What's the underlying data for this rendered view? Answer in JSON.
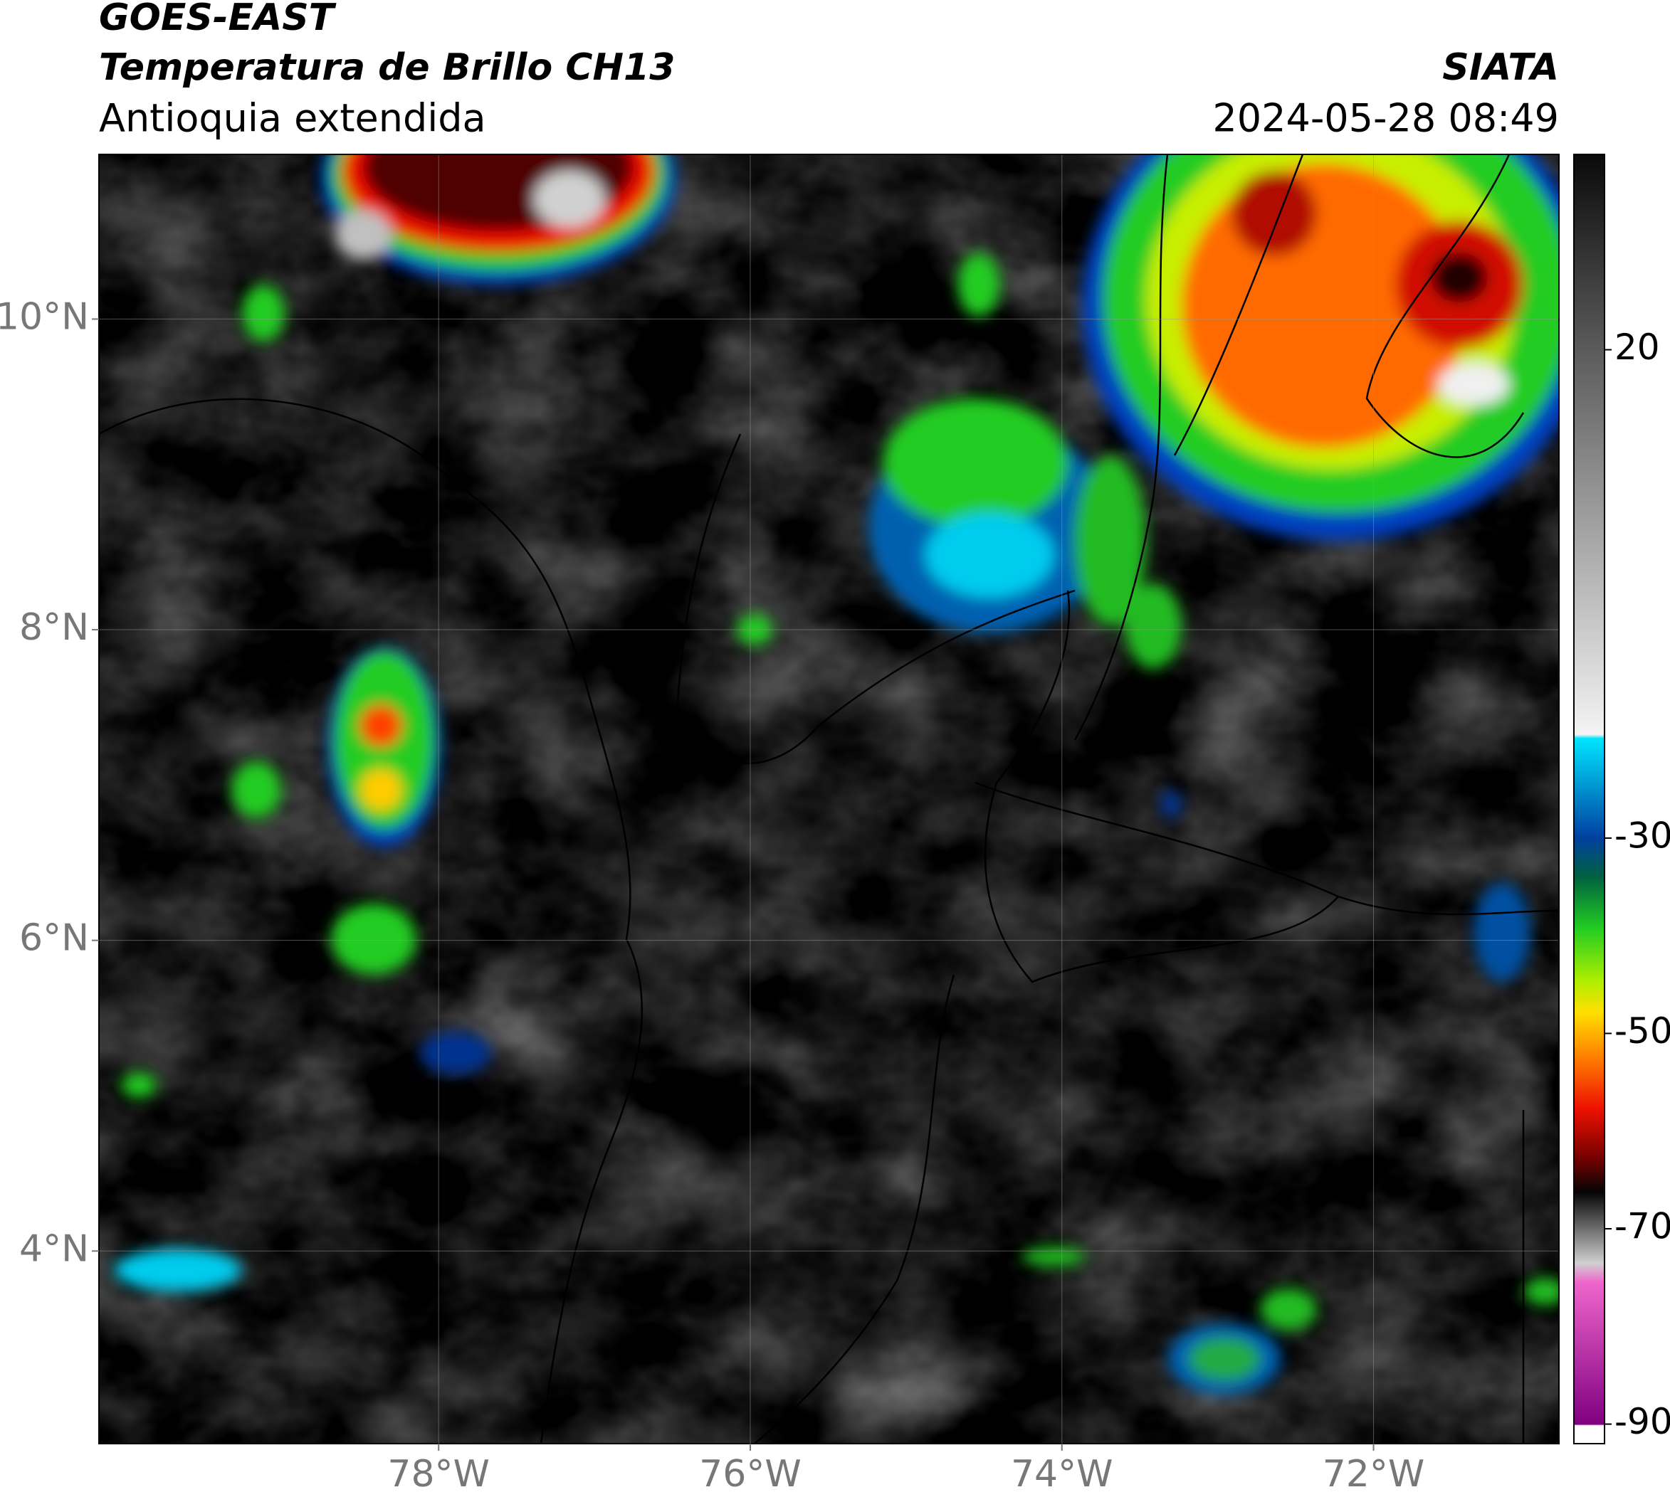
{
  "chart_data": {
    "type": "map",
    "title": "GOES-EAST",
    "subtitle": "Temperatura de Brillo CH13",
    "region": "Antioquia extendida",
    "source": "SIATA",
    "timestamp": "2024-05-28 08:49",
    "xlim": [
      -80.18,
      -70.81
    ],
    "ylim": [
      2.76,
      11.06
    ],
    "xticks": [
      {
        "value": -78,
        "label": "78°W"
      },
      {
        "value": -76,
        "label": "76°W"
      },
      {
        "value": -74,
        "label": "74°W"
      },
      {
        "value": -72,
        "label": "72°W"
      }
    ],
    "yticks": [
      {
        "value": 10,
        "label": "10°N"
      },
      {
        "value": 8,
        "label": "8°N"
      },
      {
        "value": 6,
        "label": "6°N"
      },
      {
        "value": 4,
        "label": "4°N"
      }
    ],
    "colorbar_lim": [
      -92,
      40
    ],
    "colorbar_ticks": [
      20,
      -30,
      -50,
      -70,
      -90
    ],
    "grid": true
  }
}
